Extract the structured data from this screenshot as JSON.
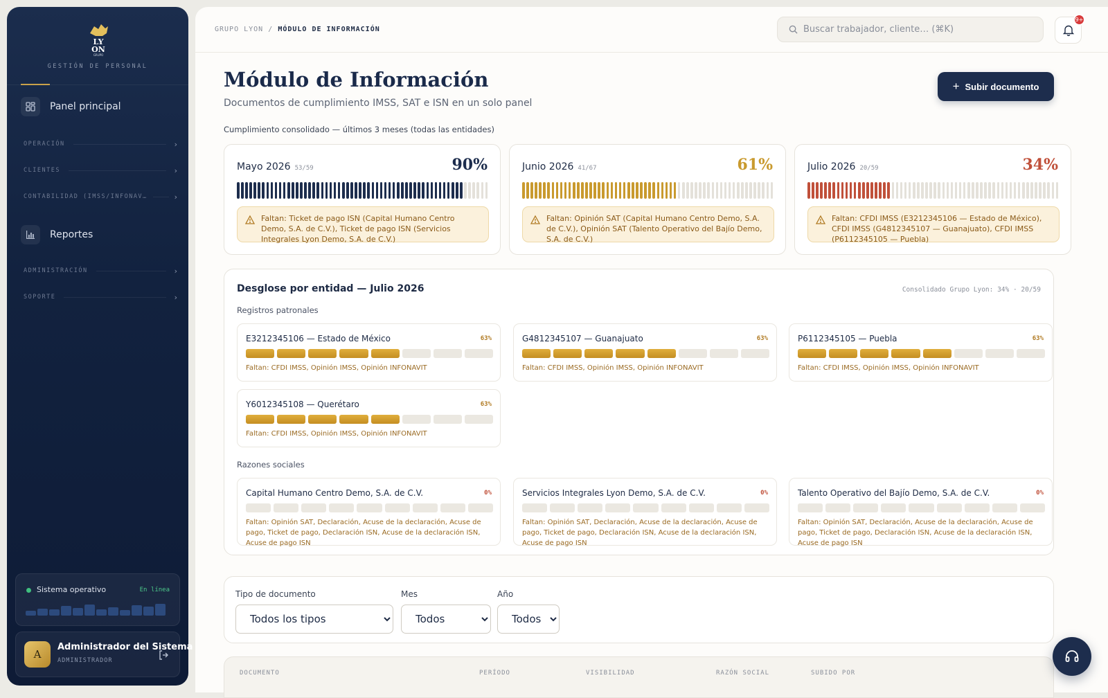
{
  "sidebar": {
    "brand": {
      "logo_top": "LY",
      "logo_bottom": "ON",
      "logo_tag": "GRUPO",
      "subtitle": "GESTIÓN DE PERSONAL"
    },
    "nav": {
      "panel": "Panel principal",
      "operacion": "OPERACIÓN",
      "clientes": "CLIENTES",
      "contabilidad": "CONTABILIDAD (IMSS/INFONAV…",
      "reportes": "Reportes",
      "administracion": "ADMINISTRACIÓN",
      "soporte": "SOPORTE"
    },
    "status": {
      "label": "Sistema operativo",
      "state": "En línea",
      "levels": [
        0.35,
        0.5,
        0.45,
        0.7,
        0.55,
        0.8,
        0.45,
        0.6,
        0.4,
        0.75,
        0.65,
        0.85
      ]
    },
    "user": {
      "initial": "A",
      "name": "Administrador del Sistema",
      "role": "ADMINISTRADOR"
    }
  },
  "topbar": {
    "crumb_root": "GRUPO LYON",
    "crumb_sep": "/",
    "crumb_current": "MÓDULO DE INFORMACIÓN",
    "search_placeholder": "Buscar trabajador, cliente… (⌘K)",
    "notifications": "9+"
  },
  "header": {
    "title": "Módulo de Información",
    "subtitle": "Documentos de cumplimiento IMSS, SAT e ISN en un solo panel",
    "upload_label": "Subir documento"
  },
  "compliance": {
    "label": "Cumplimiento consolidado — últimos 3 meses (todas las entidades)",
    "months": [
      {
        "name": "Mayo 2026",
        "count": "53/59",
        "pct": "90%",
        "done": 53,
        "total": 59,
        "color": "#1d2d4d",
        "warning": "Faltan: Ticket de pago ISN (Capital Humano Centro Demo, S.A. de C.V.), Ticket de pago ISN (Servicios Integrales Lyon Demo, S.A. de C.V.)"
      },
      {
        "name": "Junio 2026",
        "count": "41/67",
        "pct": "61%",
        "done": 41,
        "total": 67,
        "color": "#c99a2e",
        "warning": "Faltan: Opinión SAT (Capital Humano Centro Demo, S.A. de C.V.), Opinión SAT (Talento Operativo del Bajío Demo, S.A. de C.V.)"
      },
      {
        "name": "Julio 2026",
        "count": "20/59",
        "pct": "34%",
        "done": 20,
        "total": 59,
        "color": "#c0503a",
        "warning": "Faltan: CFDI IMSS (E3212345106 — Estado de México), CFDI IMSS (G4812345107 — Guanajuato), CFDI IMSS (P6112345105 — Puebla)"
      }
    ]
  },
  "breakdown": {
    "title": "Desglose por entidad — Julio 2026",
    "consolidated": "Consolidado Grupo Lyon: 34% · 20/59",
    "registros_label": "Registros patronales",
    "registros": [
      {
        "name": "E3212345106 — Estado de México",
        "pct": "63%",
        "done": 5,
        "total": 8,
        "missing": "Faltan: CFDI IMSS, Opinión IMSS, Opinión INFONAVIT"
      },
      {
        "name": "G4812345107 — Guanajuato",
        "pct": "63%",
        "done": 5,
        "total": 8,
        "missing": "Faltan: CFDI IMSS, Opinión IMSS, Opinión INFONAVIT"
      },
      {
        "name": "P6112345105 — Puebla",
        "pct": "63%",
        "done": 5,
        "total": 8,
        "missing": "Faltan: CFDI IMSS, Opinión IMSS, Opinión INFONAVIT"
      },
      {
        "name": "Y6012345108 — Querétaro",
        "pct": "63%",
        "done": 5,
        "total": 8,
        "missing": "Faltan: CFDI IMSS, Opinión IMSS, Opinión INFONAVIT"
      }
    ],
    "razones_label": "Razones sociales",
    "razones": [
      {
        "name": "Capital Humano Centro Demo, S.A. de C.V.",
        "pct": "0%",
        "done": 0,
        "total": 9,
        "missing": "Faltan: Opinión SAT, Declaración, Acuse de la declaración, Acuse de pago, Ticket de pago, Declaración ISN, Acuse de la declaración ISN, Acuse de pago ISN"
      },
      {
        "name": "Servicios Integrales Lyon Demo, S.A. de C.V.",
        "pct": "0%",
        "done": 0,
        "total": 9,
        "missing": "Faltan: Opinión SAT, Declaración, Acuse de la declaración, Acuse de pago, Ticket de pago, Declaración ISN, Acuse de la declaración ISN, Acuse de pago ISN"
      },
      {
        "name": "Talento Operativo del Bajío Demo, S.A. de C.V.",
        "pct": "0%",
        "done": 0,
        "total": 9,
        "missing": "Faltan: Opinión SAT, Declaración, Acuse de la declaración, Acuse de pago, Ticket de pago, Declaración ISN, Acuse de la declaración ISN, Acuse de pago ISN"
      }
    ]
  },
  "filters": {
    "tipo_label": "Tipo de documento",
    "tipo_value": "Todos los tipos",
    "mes_label": "Mes",
    "mes_value": "Todos",
    "anio_label": "Año",
    "anio_value": "Todos"
  },
  "table": {
    "columns": [
      "DOCUMENTO",
      "PERÍODO",
      "VISIBILIDAD",
      "RAZÓN SOCIAL",
      "SUBIDO POR"
    ]
  },
  "colors": {
    "navy": "#1d2d4d",
    "gold": "#c99a2e",
    "red": "#c0503a",
    "warn_bg": "#fbf1dc"
  }
}
